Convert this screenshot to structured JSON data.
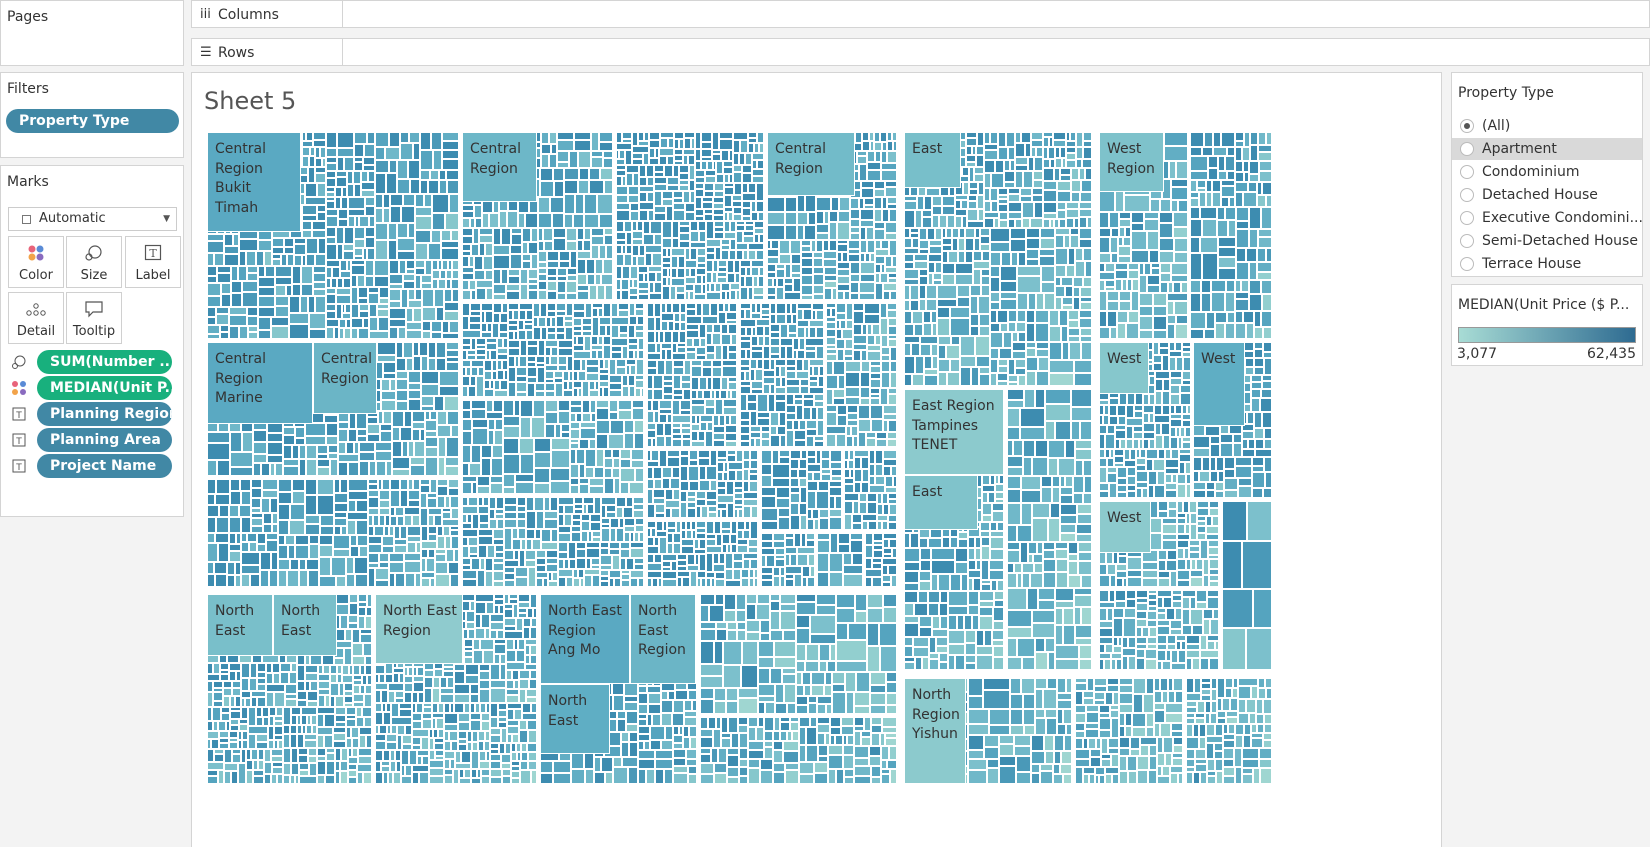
{
  "pages_panel": {
    "title": "Pages"
  },
  "shelves": {
    "columns_label": "Columns",
    "rows_label": "Rows"
  },
  "filters": {
    "title": "Filters",
    "items": [
      "Property Type"
    ]
  },
  "marks": {
    "title": "Marks",
    "type_select": "Automatic",
    "cards": [
      "Color",
      "Size",
      "Label",
      "Detail",
      "Tooltip"
    ],
    "fields": [
      {
        "label": "SUM(Number ..",
        "kind": "size",
        "color": "#18b07d"
      },
      {
        "label": "MEDIAN(Unit P..",
        "kind": "color",
        "color": "#18b07d"
      },
      {
        "label": "Planning Region",
        "kind": "label",
        "color": "#4188a5"
      },
      {
        "label": "Planning Area",
        "kind": "label",
        "color": "#4188a5"
      },
      {
        "label": "Project Name",
        "kind": "label",
        "color": "#4188a5"
      }
    ]
  },
  "sheet": {
    "title": "Sheet 5"
  },
  "treemap_labels": {
    "b1": "Central\nRegion\nBukit\nTimah",
    "b2": "Central\nRegion",
    "b4": "Central\nRegion",
    "b5": "East",
    "b6": "West\nRegion",
    "b8": "Central\nRegion\nMarine",
    "b8b": "Central\nRegion",
    "b17": "East Region\nTampines\nTENET",
    "b17b": "East",
    "b19": "West",
    "b20": "West",
    "b21": "West",
    "b23": "North\nEast",
    "b23b": "North\nEast",
    "b24": "North East\nRegion",
    "b25": "North East\nRegion\nAng Mo",
    "b25b": "North\nEast\nRegion",
    "b25c": "North\nEast",
    "b28": "North\nRegion\nYishun"
  },
  "property_type_filter": {
    "title": "Property Type",
    "options": [
      "(All)",
      "Apartment",
      "Condominium",
      "Detached House",
      "Executive Condomini...",
      "Semi-Detached House",
      "Terrace House"
    ],
    "selected": "(All)",
    "highlighted": "Apartment"
  },
  "color_legend": {
    "title": "MEDIAN(Unit Price ($ P...",
    "min": "3,077",
    "max": "62,435",
    "color_low": "#a8dcd5",
    "color_high": "#2e6b91"
  }
}
